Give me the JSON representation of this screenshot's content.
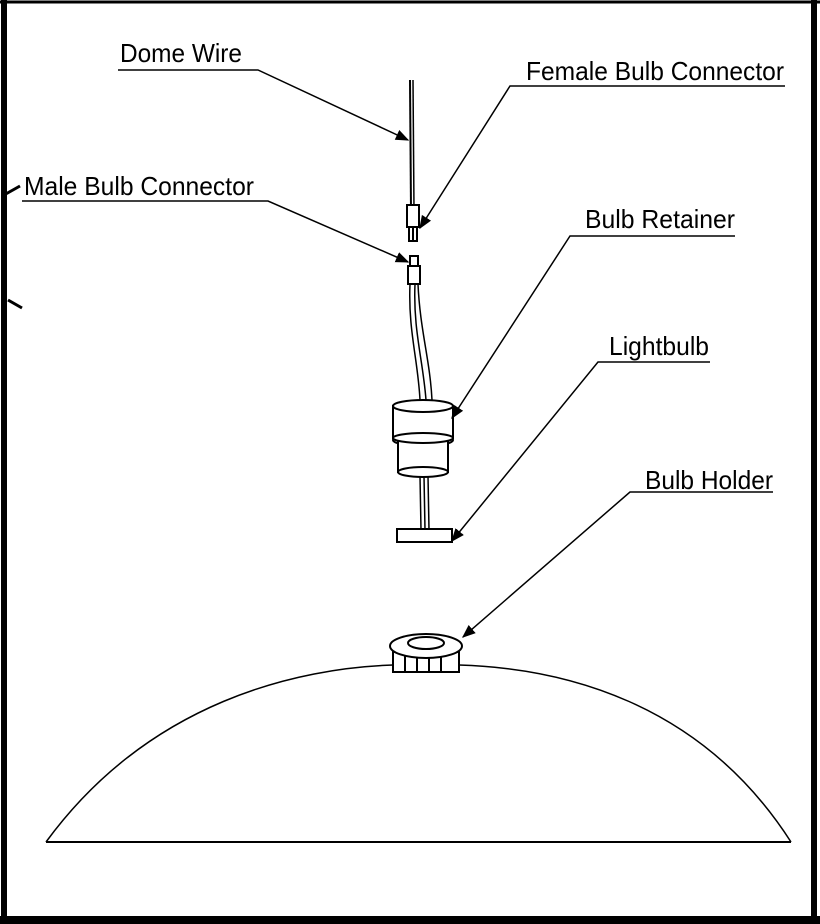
{
  "diagram": {
    "labels": {
      "dome_wire": "Dome Wire",
      "female_bulb_connector": "Female Bulb Connector",
      "male_bulb_connector": "Male Bulb Connector",
      "bulb_retainer": "Bulb Retainer",
      "lightbulb": "Lightbulb",
      "bulb_holder": "Bulb Holder"
    }
  }
}
